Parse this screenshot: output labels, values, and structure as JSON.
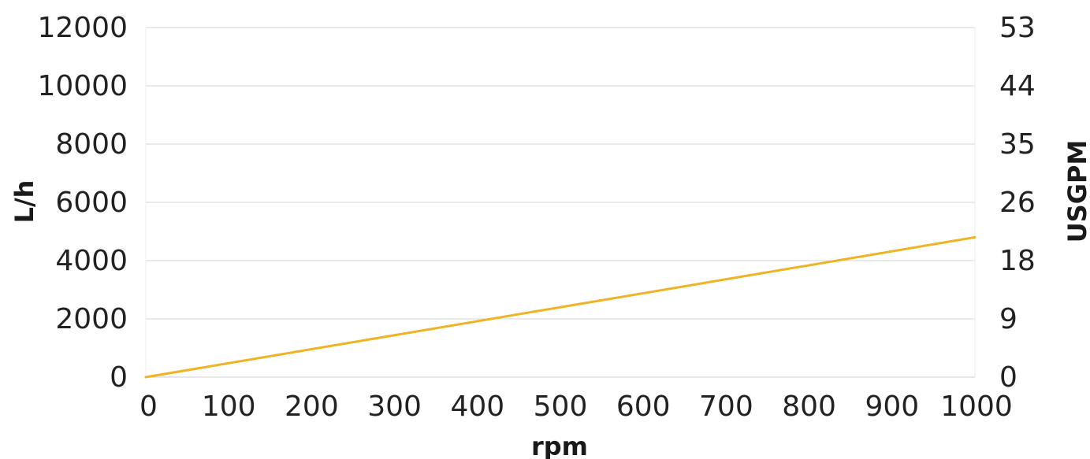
{
  "chart_data": {
    "type": "line",
    "title": "",
    "xlabel": "rpm",
    "ylabel": "L/h",
    "y2label": "USGPM",
    "xlim": [
      0,
      1000
    ],
    "ylim": [
      0,
      12000
    ],
    "x_ticks": [
      "0",
      "100",
      "200",
      "300",
      "400",
      "500",
      "600",
      "700",
      "800",
      "900",
      "1000"
    ],
    "y_ticks": [
      "0",
      "2000",
      "4000",
      "6000",
      "8000",
      "10000",
      "12000"
    ],
    "y2_ticks": [
      "0",
      "9",
      "18",
      "26",
      "35",
      "44",
      "53"
    ],
    "grid": true,
    "legend": "none",
    "series": [
      {
        "color": "#F0B323",
        "points": [
          [
            0,
            0
          ],
          [
            1000,
            4800
          ]
        ]
      }
    ]
  }
}
